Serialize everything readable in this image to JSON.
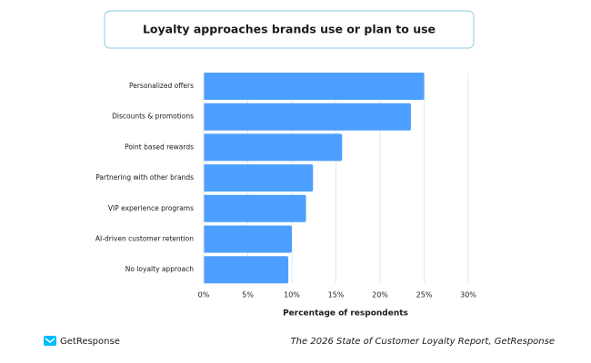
{
  "chart_data": {
    "type": "barh",
    "title": "Loyalty approaches brands use or plan to use",
    "categories": [
      "Personalized offers",
      "Discounts & promotions",
      "Point based rewards",
      "Partnering with other brands",
      "VIP experience programs",
      "AI-driven customer retention",
      "No loyalty approach"
    ],
    "values": [
      25,
      23.5,
      15.7,
      12.4,
      11.6,
      10,
      9.6
    ],
    "color": "#4d9fff",
    "xlim": [
      0,
      30
    ],
    "xticks": [
      {
        "value": 0,
        "label": "0%"
      },
      {
        "value": 5,
        "label": "5%"
      },
      {
        "value": 10,
        "label": "10%"
      },
      {
        "value": 15,
        "label": "15%"
      },
      {
        "value": 20,
        "label": "20%"
      },
      {
        "value": 25,
        "label": "25%"
      },
      {
        "value": 30,
        "label": "30%"
      }
    ],
    "x_label": "Percentage of respondents",
    "grid": true
  },
  "footer": {
    "brand": "GetResponse",
    "source": "The 2026 State of Customer Loyalty Report, GetResponse"
  }
}
